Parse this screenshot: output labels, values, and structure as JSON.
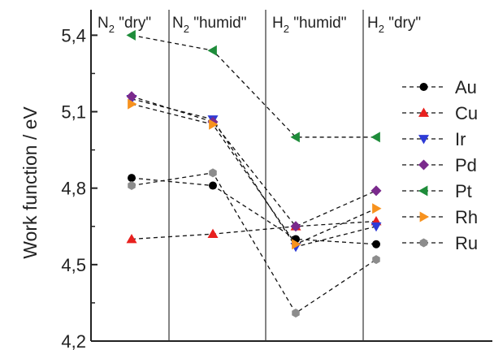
{
  "chart_data": {
    "type": "line",
    "ylabel": "Work function / eV",
    "ylim": [
      4.2,
      5.5
    ],
    "yticks": [
      "5,4",
      "5,1",
      "4,8",
      "4,5",
      "4,2"
    ],
    "ytick_values": [
      5.4,
      5.1,
      4.8,
      4.5,
      4.2
    ],
    "conditions": [
      {
        "main": "N",
        "sub": "2",
        "rest": " \"dry\""
      },
      {
        "main": "N",
        "sub": "2",
        "rest": " \"humid\""
      },
      {
        "main": "H",
        "sub": "2",
        "rest": " \"humid\""
      },
      {
        "main": "H",
        "sub": "2",
        "rest": " \"dry\""
      }
    ],
    "line_style": "dashed",
    "legend_position": "right",
    "series": [
      {
        "name": "Au",
        "marker": "circle",
        "color": "#000000",
        "values": [
          4.84,
          4.81,
          4.6,
          4.58
        ]
      },
      {
        "name": "Cu",
        "marker": "triangle-up",
        "color": "#e8201e",
        "values": [
          4.6,
          4.62,
          4.65,
          4.67
        ]
      },
      {
        "name": "Ir",
        "marker": "triangle-down",
        "color": "#2e3bd6",
        "values": [
          5.15,
          5.07,
          4.57,
          4.65
        ]
      },
      {
        "name": "Pd",
        "marker": "diamond",
        "color": "#7a2a8c",
        "values": [
          5.16,
          5.06,
          4.65,
          4.79
        ]
      },
      {
        "name": "Pt",
        "marker": "triangle-left",
        "color": "#1e8c3a",
        "values": [
          5.4,
          5.34,
          5.0,
          5.0
        ]
      },
      {
        "name": "Rh",
        "marker": "triangle-right",
        "color": "#f7921e",
        "values": [
          5.13,
          5.05,
          4.58,
          4.72
        ]
      },
      {
        "name": "Ru",
        "marker": "hexagon",
        "color": "#8c8c8c",
        "values": [
          4.81,
          4.86,
          4.31,
          4.52
        ]
      }
    ]
  }
}
